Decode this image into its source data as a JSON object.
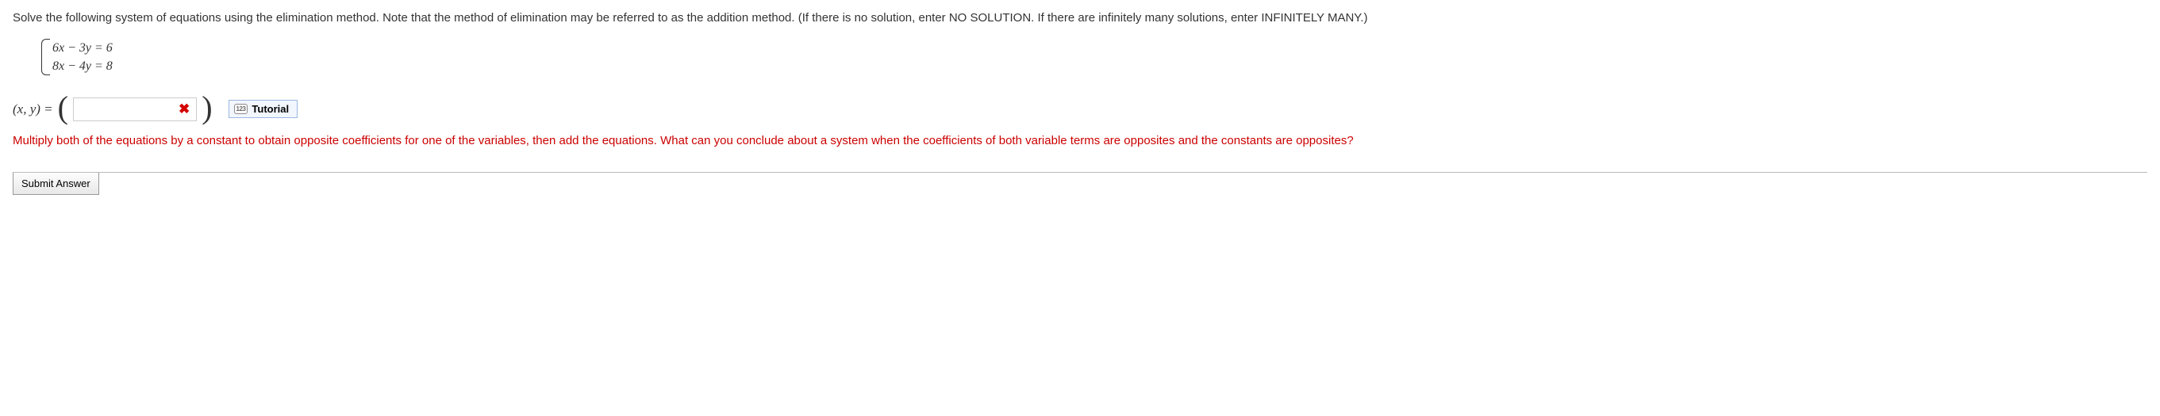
{
  "question": {
    "prompt": "Solve the following system of equations using the elimination method. Note that the method of elimination may be referred to as the addition method. (If there is no solution, enter NO SOLUTION. If there are infinitely many solutions, enter INFINITELY MANY.)",
    "equations": {
      "line1": "6x − 3y  =  6",
      "line2": "8x − 4y  =  8"
    }
  },
  "answer": {
    "prefix_label": "(x, y) = ",
    "open_paren": "(",
    "close_paren": ")",
    "input_value": "",
    "wrong_icon_text": "✖",
    "tutorial_badge": "123",
    "tutorial_label": "Tutorial"
  },
  "hint": "Multiply both of the equations by a constant to obtain opposite coefficients for one of the variables, then add the equations. What can you conclude about a system when the coefficients of both variable terms are opposites and the constants are opposites?",
  "submit_label": "Submit Answer",
  "colors": {
    "hint_color": "#cc0000",
    "wrong_color": "#d40000",
    "tutorial_border": "#9bb7e0",
    "tutorial_bg": "#f2f6fd"
  }
}
